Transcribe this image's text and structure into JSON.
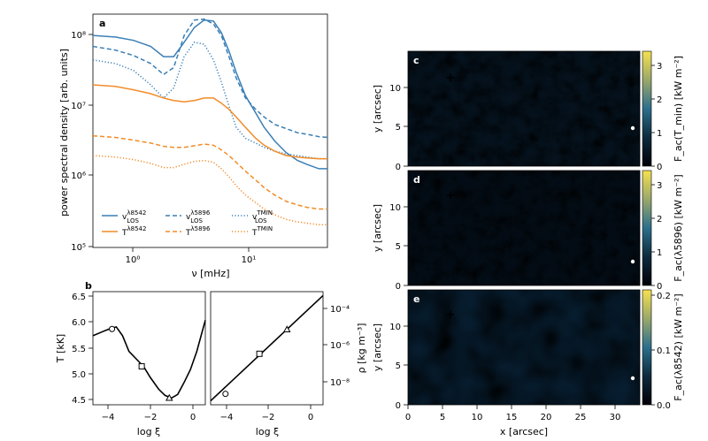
{
  "colors": {
    "blue": "#3a7fb6",
    "orange": "#f28c28",
    "cbar_low": "#000008",
    "cbar_mid": "#2c6f8c",
    "cbar_high": "#f5e150"
  },
  "panels": {
    "a": {
      "label": "a",
      "ylabel": "power spectral density [arb. units]",
      "xlabel": "ν [mHz]",
      "yticks": [
        "10⁵",
        "10⁶",
        "10⁷",
        "10⁸"
      ],
      "xticks": [
        "10⁰",
        "10¹"
      ]
    },
    "b": {
      "label": "b",
      "left_ylabel": "T [kK]",
      "left_yticks": [
        "4.5",
        "5.0",
        "5.5",
        "6.0",
        "6.5"
      ],
      "right_ylabel": "ρ [kg m⁻³]",
      "right_yticks": [
        "10⁻⁴",
        "10⁻⁶",
        "10⁻⁸"
      ],
      "xlabel": "log ξ",
      "xticks": [
        "−4",
        "−2",
        "0"
      ]
    },
    "maps": [
      {
        "label": "c",
        "cbar_label": "F_ac(T_min) [kW m⁻²]",
        "cbar_ticks": [
          "0",
          "1",
          "2",
          "3"
        ]
      },
      {
        "label": "d",
        "cbar_label": "F_ac(λ5896) [kW m⁻²]",
        "cbar_ticks": [
          "0",
          "1",
          "2",
          "3"
        ]
      },
      {
        "label": "e",
        "cbar_label": "F_ac(λ8542) [kW m⁻²]",
        "cbar_ticks": [
          "0.0",
          "0.1",
          "0.2"
        ]
      }
    ],
    "map_ylabel": "y [arcsec]",
    "map_yticks": [
      "0",
      "5",
      "10"
    ],
    "map_xlabel": "x [arcsec]",
    "map_xticks": [
      "0",
      "5",
      "10",
      "15",
      "20",
      "25",
      "30"
    ]
  },
  "legend": [
    {
      "main": "v",
      "sup": "λ8542",
      "sub": "LOS",
      "color": "#3a7fb6",
      "dash": "solid"
    },
    {
      "main": "v",
      "sup": "λ5896",
      "sub": "LOS",
      "color": "#3a7fb6",
      "dash": "dashed"
    },
    {
      "main": "v",
      "sup": "TMIN",
      "sub": "LOS",
      "color": "#3a7fb6",
      "dash": "dotted"
    },
    {
      "main": "T",
      "sup": "λ8542",
      "sub": "",
      "color": "#f28c28",
      "dash": "solid"
    },
    {
      "main": "T",
      "sup": "λ5896",
      "sub": "",
      "color": "#f28c28",
      "dash": "dashed"
    },
    {
      "main": "T",
      "sup": "TMIN",
      "sub": "",
      "color": "#f28c28",
      "dash": "dotted"
    }
  ],
  "chart_data": [
    {
      "type": "line",
      "panel": "a",
      "x_scale": "log",
      "y_scale": "log",
      "xlim": [
        0.45,
        45
      ],
      "ylim": [
        100000,
        200000000
      ],
      "x": [
        0.45,
        0.7,
        1.0,
        1.4,
        1.8,
        2.2,
        2.7,
        3.3,
        4.0,
        4.8,
        5.6,
        6.5,
        7.5,
        9.0,
        11.0,
        13.0,
        16.0,
        20.0,
        25.0,
        30.0,
        38.0,
        45.0
      ],
      "series": [
        {
          "key": "vlos8542",
          "color": "blue",
          "dash": "solid",
          "values": [
            100000000,
            95000000,
            85000000,
            70000000,
            50000000,
            50000000,
            80000000,
            130000000,
            165000000,
            160000000,
            110000000,
            60000000,
            30000000,
            14000000,
            8000000,
            5000000,
            3200000,
            2200000,
            1700000,
            1500000,
            1300000,
            1300000
          ]
        },
        {
          "key": "vlos5896",
          "color": "blue",
          "dash": "dashed",
          "values": [
            70000000,
            62000000,
            52000000,
            40000000,
            28000000,
            35000000,
            100000000,
            165000000,
            170000000,
            145000000,
            100000000,
            50000000,
            25000000,
            13000000,
            9000000,
            7000000,
            5500000,
            4800000,
            4200000,
            4000000,
            3700000,
            3600000
          ]
        },
        {
          "key": "vlosTMIN",
          "color": "blue",
          "dash": "dotted",
          "values": [
            45000000,
            40000000,
            32000000,
            20000000,
            13000000,
            18000000,
            50000000,
            80000000,
            75000000,
            45000000,
            22000000,
            10000000,
            5000000,
            3500000,
            3000000,
            2600000,
            2300000,
            2100000,
            2000000,
            1900000,
            1800000,
            1800000
          ]
        },
        {
          "key": "T8542",
          "color": "orange",
          "dash": "solid",
          "values": [
            20000000,
            19000000,
            17000000,
            15000000,
            13000000,
            12000000,
            11500000,
            12000000,
            13000000,
            13000000,
            11000000,
            9000000,
            7000000,
            5000000,
            3500000,
            2800000,
            2300000,
            2000000,
            1900000,
            1850000,
            1800000,
            1800000
          ]
        },
        {
          "key": "T5896",
          "color": "orange",
          "dash": "dashed",
          "values": [
            3800000,
            3600000,
            3300000,
            3000000,
            2700000,
            2600000,
            2600000,
            2750000,
            2900000,
            2800000,
            2400000,
            2000000,
            1600000,
            1200000,
            900000,
            700000,
            550000,
            450000,
            400000,
            370000,
            350000,
            350000
          ]
        },
        {
          "key": "TTMIN",
          "color": "orange",
          "dash": "dotted",
          "values": [
            2000000,
            1900000,
            1750000,
            1550000,
            1350000,
            1350000,
            1500000,
            1650000,
            1700000,
            1600000,
            1300000,
            1000000,
            750000,
            550000,
            430000,
            350000,
            290000,
            250000,
            230000,
            220000,
            210000,
            210000
          ]
        }
      ]
    },
    {
      "type": "line",
      "panel": "b-left",
      "xlim": [
        -4.7,
        0.6
      ],
      "ylim": [
        4.42,
        6.6
      ],
      "x": [
        -4.7,
        -4.3,
        -4.0,
        -3.6,
        -3.3,
        -3.0,
        -2.6,
        -2.3,
        -2.0,
        -1.6,
        -1.3,
        -1.0,
        -0.7,
        -0.4,
        -0.1,
        0.2,
        0.6
      ],
      "values": [
        5.75,
        5.82,
        5.87,
        5.92,
        5.75,
        5.45,
        5.28,
        5.15,
        4.95,
        4.72,
        4.6,
        4.55,
        4.62,
        4.85,
        5.1,
        5.45,
        6.05
      ],
      "markers": [
        {
          "symbol": "circle",
          "x": -3.8,
          "y": 5.88
        },
        {
          "symbol": "square",
          "x": -2.4,
          "y": 5.16
        },
        {
          "symbol": "triangle",
          "x": -1.1,
          "y": 4.55
        }
      ]
    },
    {
      "type": "line",
      "panel": "b-right",
      "y_scale": "log",
      "xlim": [
        -4.7,
        0.6
      ],
      "ylim": [
        2e-09,
        0.0003
      ],
      "x": [
        -4.7,
        0.6
      ],
      "values": [
        3e-09,
        0.0002
      ],
      "markers": [
        {
          "symbol": "circle",
          "x": -4.0,
          "y": 6.3e-09
        },
        {
          "symbol": "square",
          "x": -2.4,
          "y": 4.3e-07
        },
        {
          "symbol": "triangle",
          "x": -1.1,
          "y": 5.5e-06
        }
      ]
    }
  ]
}
